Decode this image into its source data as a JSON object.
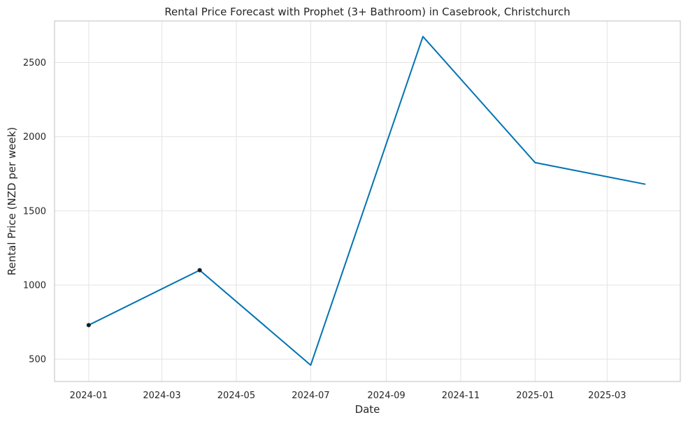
{
  "chart_data": {
    "type": "line",
    "title": "Rental Price Forecast with Prophet (3+ Bathroom) in Casebrook, Christchurch",
    "xlabel": "Date",
    "ylabel": "Rental Price (NZD per week)",
    "x_type": "date",
    "xlim": [
      "2023-12-04",
      "2025-04-30"
    ],
    "ylim": [
      350,
      2780
    ],
    "x_ticks": [
      "2024-01",
      "2024-03",
      "2024-05",
      "2024-07",
      "2024-09",
      "2024-11",
      "2025-01",
      "2025-03"
    ],
    "x_tick_dates": [
      "2024-01-01",
      "2024-03-01",
      "2024-05-01",
      "2024-07-01",
      "2024-09-01",
      "2024-11-01",
      "2025-01-01",
      "2025-03-01"
    ],
    "y_ticks": [
      500,
      1000,
      1500,
      2000,
      2500
    ],
    "grid": true,
    "series": [
      {
        "kind": "forecast-line",
        "color": "#0173b2",
        "points": [
          {
            "x": "2024-01-01",
            "y": 730
          },
          {
            "x": "2024-04-01",
            "y": 1100
          },
          {
            "x": "2024-07-01",
            "y": 460
          },
          {
            "x": "2024-10-01",
            "y": 2675
          },
          {
            "x": "2025-01-01",
            "y": 1825
          },
          {
            "x": "2025-04-01",
            "y": 1680
          }
        ]
      },
      {
        "kind": "observed-points",
        "color": "#1a1a1a",
        "points": [
          {
            "x": "2024-01-01",
            "y": 730
          },
          {
            "x": "2024-04-01",
            "y": 1100
          }
        ]
      }
    ]
  }
}
